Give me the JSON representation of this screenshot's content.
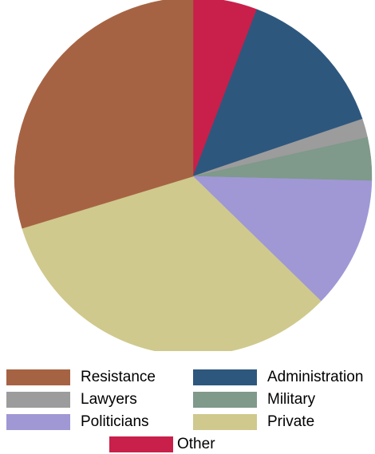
{
  "chart_data": {
    "type": "pie",
    "title": "",
    "start_angle_deg": 0,
    "direction": "clockwise",
    "slices": [
      {
        "label": "Other",
        "value": 5.8,
        "color": "#c8204a"
      },
      {
        "label": "Administration",
        "value": 14.0,
        "color": "#2e577e"
      },
      {
        "label": "Lawyers",
        "value": 1.7,
        "color": "#9c9c9c"
      },
      {
        "label": "Military",
        "value": 3.9,
        "color": "#7f998b"
      },
      {
        "label": "Politicians",
        "value": 11.9,
        "color": "#9f98d5"
      },
      {
        "label": "Private",
        "value": 33.0,
        "color": "#cfc98d"
      },
      {
        "label": "Resistance",
        "value": 29.7,
        "color": "#a66343"
      }
    ],
    "legend": {
      "placement": "bottom",
      "items": [
        "Resistance",
        "Administration",
        "Lawyers",
        "Military",
        "Politicians",
        "Private",
        "Other"
      ]
    }
  }
}
